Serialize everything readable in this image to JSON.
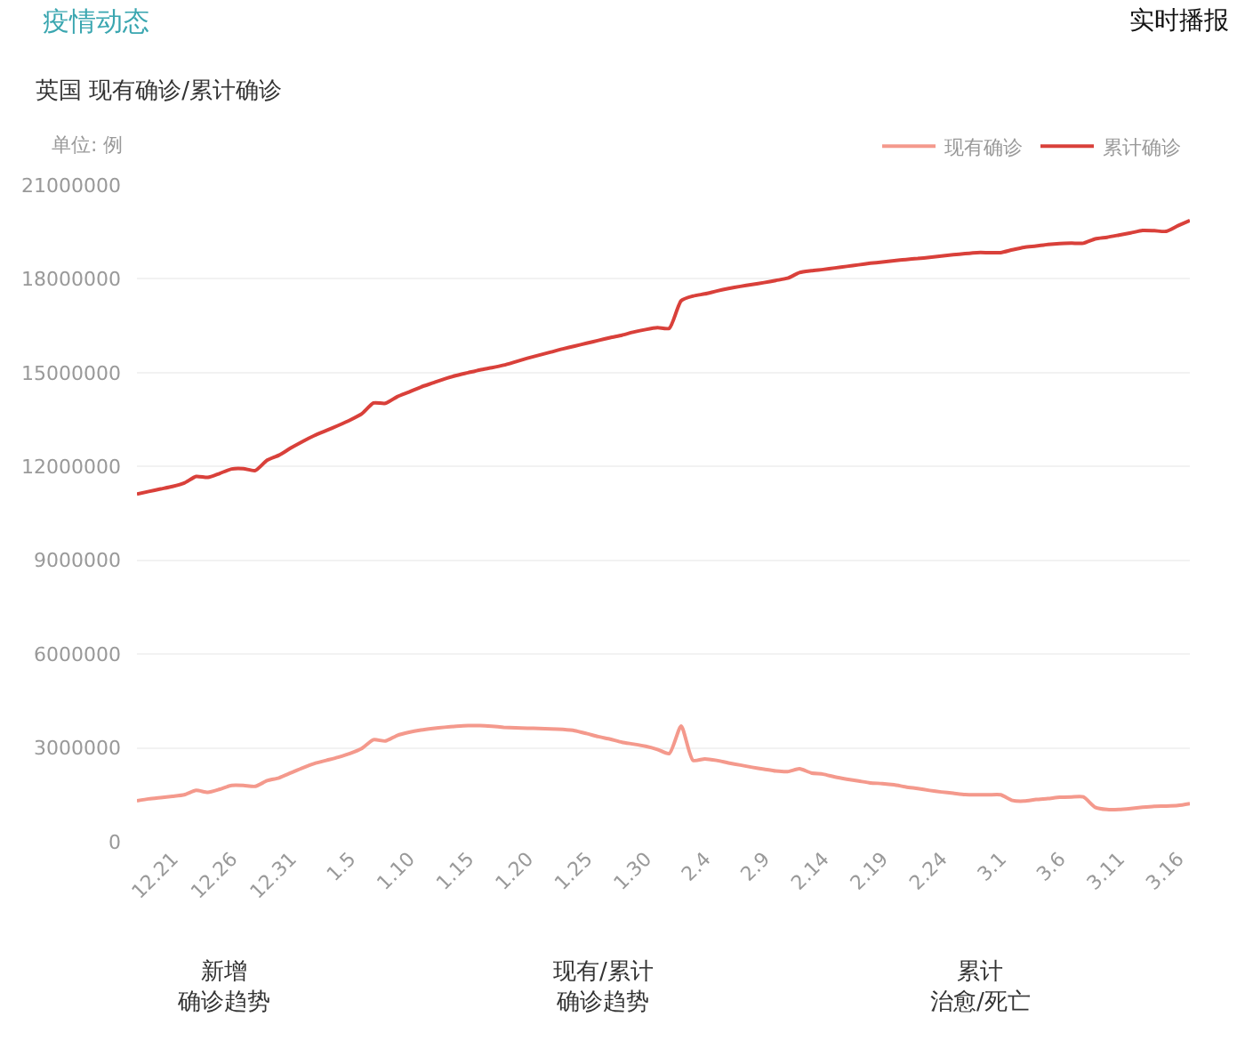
{
  "chart_data": {
    "type": "line",
    "title": "英国 现有确诊/累计确诊",
    "ylabel": "单位: 例",
    "annotations": [
      "疫情动态",
      "实时播报",
      "新增",
      "确诊趋势",
      "现有/累计",
      "确诊趋势",
      "累计",
      "治愈/死亡"
    ],
    "categories": [
      null,
      null,
      null,
      "12.21",
      null,
      null,
      null,
      null,
      "12.26",
      null,
      null,
      null,
      null,
      "12.31",
      null,
      null,
      null,
      null,
      "1.5",
      null,
      null,
      null,
      null,
      "1.10",
      null,
      null,
      null,
      null,
      "1.15",
      null,
      null,
      null,
      null,
      "1.20",
      null,
      null,
      null,
      null,
      "1.25",
      null,
      null,
      null,
      null,
      "1.30",
      null,
      null,
      null,
      null,
      "2.4",
      null,
      null,
      null,
      null,
      "2.9",
      null,
      null,
      null,
      null,
      "2.14",
      null,
      null,
      null,
      null,
      "2.19",
      null,
      null,
      null,
      null,
      "2.24",
      null,
      null,
      null,
      null,
      "3.1",
      null,
      null,
      null,
      null,
      "3.6",
      null,
      null,
      null,
      null,
      "3.11",
      null,
      null,
      null,
      null,
      "3.16",
      null
    ],
    "series": [
      {
        "name": "现有确诊",
        "color": "#f4998c",
        "values": [
          1310000,
          1370000,
          1410000,
          1450000,
          1500000,
          1640000,
          1580000,
          1680000,
          1800000,
          1800000,
          1770000,
          1950000,
          2040000,
          2200000,
          2360000,
          2500000,
          2600000,
          2700000,
          2820000,
          2980000,
          3260000,
          3220000,
          3400000,
          3500000,
          3570000,
          3620000,
          3660000,
          3690000,
          3710000,
          3710000,
          3690000,
          3660000,
          3640000,
          3630000,
          3620000,
          3610000,
          3590000,
          3550000,
          3460000,
          3360000,
          3280000,
          3180000,
          3120000,
          3050000,
          2950000,
          2820000,
          3700000,
          2600000,
          2650000,
          2600000,
          2520000,
          2450000,
          2380000,
          2320000,
          2260000,
          2240000,
          2330000,
          2200000,
          2160000,
          2070000,
          2000000,
          1940000,
          1880000,
          1860000,
          1820000,
          1750000,
          1700000,
          1640000,
          1590000,
          1550000,
          1510000,
          1500000,
          1500000,
          1500000,
          1320000,
          1300000,
          1350000,
          1380000,
          1420000,
          1430000,
          1430000,
          1100000,
          1030000,
          1030000,
          1060000,
          1100000,
          1130000,
          1140000,
          1160000,
          1220000
        ]
      },
      {
        "name": "累计确诊",
        "color": "#d9403a",
        "values": [
          11120000,
          11200000,
          11280000,
          11360000,
          11470000,
          11680000,
          11650000,
          11780000,
          11920000,
          11930000,
          11870000,
          12200000,
          12360000,
          12590000,
          12800000,
          12990000,
          13150000,
          13310000,
          13480000,
          13680000,
          14030000,
          14020000,
          14230000,
          14380000,
          14540000,
          14670000,
          14800000,
          14910000,
          15000000,
          15090000,
          15160000,
          15240000,
          15350000,
          15460000,
          15560000,
          15660000,
          15760000,
          15850000,
          15940000,
          16030000,
          16120000,
          16200000,
          16300000,
          16380000,
          16440000,
          16420000,
          17300000,
          17450000,
          17520000,
          17610000,
          17690000,
          17760000,
          17820000,
          17880000,
          17950000,
          18020000,
          18200000,
          18260000,
          18300000,
          18350000,
          18400000,
          18450000,
          18500000,
          18540000,
          18580000,
          18620000,
          18650000,
          18690000,
          18730000,
          18770000,
          18810000,
          18840000,
          18840000,
          18840000,
          18930000,
          19010000,
          19050000,
          19100000,
          19130000,
          19140000,
          19140000,
          19280000,
          19330000,
          19400000,
          19470000,
          19550000,
          19540000,
          19520000,
          19700000,
          19870000
        ]
      }
    ],
    "ylim": [
      0,
      21000000
    ],
    "yticks": [
      0,
      3000000,
      6000000,
      9000000,
      12000000,
      15000000,
      18000000,
      21000000
    ],
    "grid": "y",
    "legend": "top right"
  }
}
